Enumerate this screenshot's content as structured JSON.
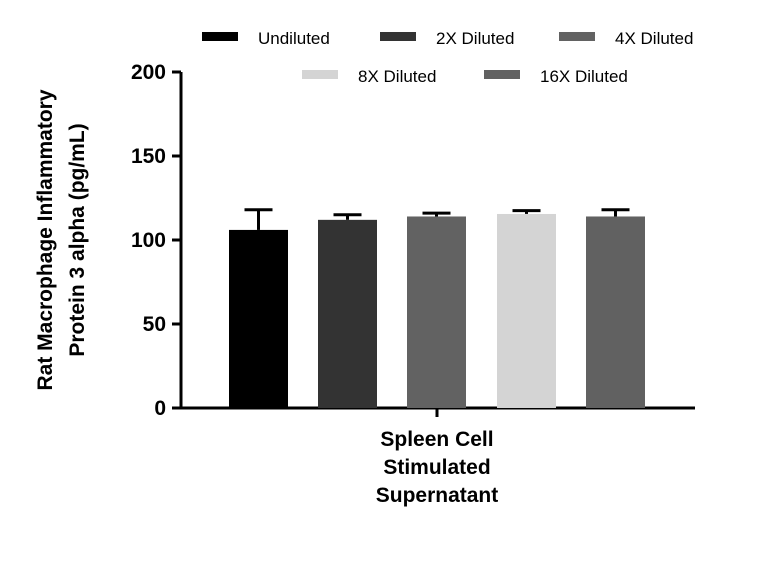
{
  "chart_data": {
    "type": "bar",
    "title": "",
    "ylabel_lines": [
      "Rat Macrophage Inflammatory",
      "Protein 3 alpha (pg/mL)"
    ],
    "xlabel_lines": [
      "Spleen Cell",
      "Stimulated",
      "Supernatant"
    ],
    "ylim": [
      0,
      200
    ],
    "yticks": [
      "0",
      "50",
      "100",
      "150",
      "200"
    ],
    "grid": false,
    "legend_placement": "top",
    "series": [
      {
        "name": "Undiluted",
        "value": 106,
        "error": 12,
        "color": "#000000"
      },
      {
        "name": "2X Diluted",
        "value": 112,
        "error": 3,
        "color": "#333333"
      },
      {
        "name": "4X Diluted",
        "value": 114,
        "error": 2,
        "color": "#626262"
      },
      {
        "name": "8X Diluted",
        "value": 115.5,
        "error": 2,
        "color": "#d4d4d4"
      },
      {
        "name": "16X Diluted",
        "value": 114,
        "error": 4,
        "color": "#616161"
      }
    ]
  }
}
